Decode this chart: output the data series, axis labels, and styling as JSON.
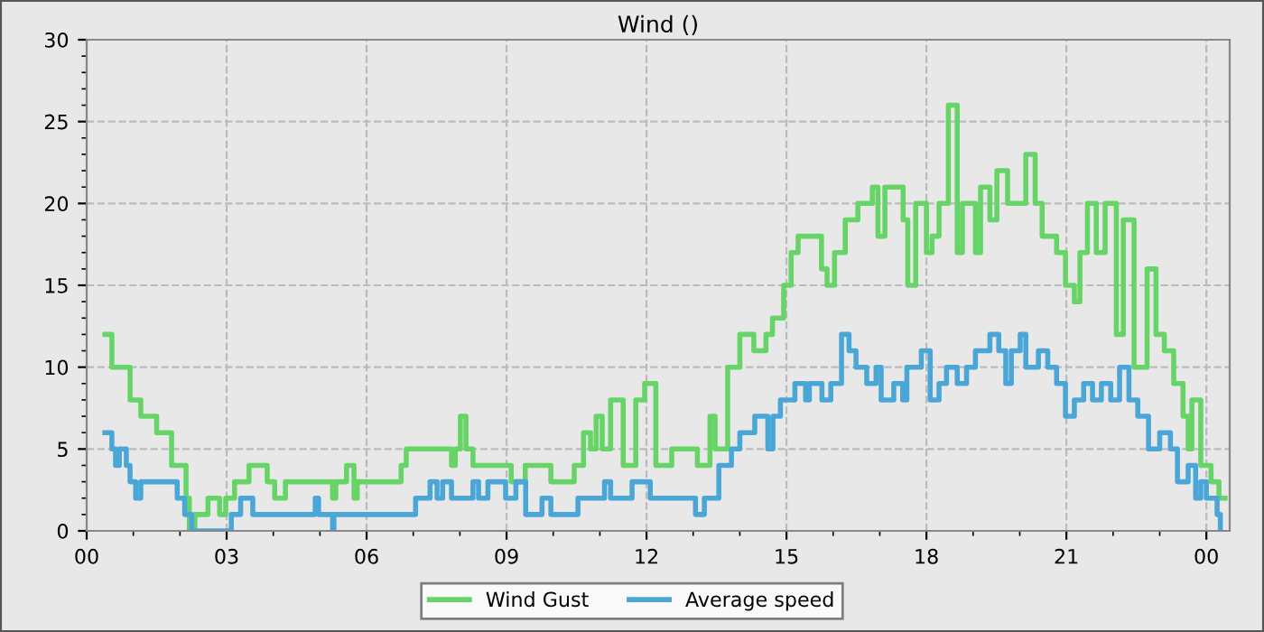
{
  "chart_data": {
    "type": "step",
    "title": "Wind ()",
    "xlim": [
      0,
      24.5
    ],
    "ylim": [
      0,
      30
    ],
    "xticks": [
      {
        "value": 0,
        "label": "00"
      },
      {
        "value": 3,
        "label": "03"
      },
      {
        "value": 6,
        "label": "06"
      },
      {
        "value": 9,
        "label": "09"
      },
      {
        "value": 12,
        "label": "12"
      },
      {
        "value": 15,
        "label": "15"
      },
      {
        "value": 18,
        "label": "18"
      },
      {
        "value": 21,
        "label": "21"
      },
      {
        "value": 24,
        "label": "00"
      }
    ],
    "yticks": [
      0,
      5,
      10,
      15,
      20,
      25,
      30
    ],
    "grid": true,
    "legend": "bottom",
    "line_style": "solid",
    "marker": "none",
    "series": [
      {
        "name": "Wind Gust",
        "color": "#66d466",
        "x": [
          0.39,
          0.54,
          0.93,
          1.16,
          1.5,
          1.82,
          2.13,
          2.2,
          2.32,
          2.6,
          2.85,
          2.98,
          3.17,
          3.48,
          3.87,
          4.03,
          4.26,
          5.27,
          5.34,
          5.57,
          5.73,
          5.8,
          6.74,
          6.85,
          7.82,
          7.9,
          8.01,
          8.13,
          8.28,
          8.98,
          9.1,
          9.4,
          9.76,
          9.95,
          10.45,
          10.65,
          10.8,
          10.92,
          11.05,
          11.23,
          11.5,
          11.77,
          11.96,
          12.2,
          12.54,
          13.09,
          13.36,
          13.47,
          13.74,
          14.0,
          14.3,
          14.56,
          14.7,
          14.94,
          15.1,
          15.25,
          15.75,
          15.87,
          16.03,
          16.26,
          16.53,
          16.84,
          16.96,
          17.11,
          17.5,
          17.6,
          17.77,
          18.0,
          18.12,
          18.27,
          18.47,
          18.66,
          18.77,
          19.05,
          19.16,
          19.36,
          19.51,
          19.74,
          20.13,
          20.33,
          20.48,
          20.79,
          20.98,
          21.17,
          21.29,
          21.45,
          21.64,
          21.83,
          22.07,
          22.22,
          22.45,
          22.73,
          22.92,
          23.1,
          23.3,
          23.5,
          23.61,
          23.69,
          23.88,
          24.1,
          24.27,
          24.4
        ],
        "values": [
          12,
          10,
          8,
          7,
          6,
          4,
          2,
          0,
          1,
          2,
          1,
          2,
          3,
          4,
          3,
          2,
          3,
          2,
          3,
          4,
          2,
          3,
          4,
          5,
          4,
          5,
          7,
          5,
          4,
          4,
          3,
          4,
          4,
          3,
          4,
          6,
          5,
          7,
          5,
          8,
          4,
          8,
          9,
          4,
          5,
          4,
          7,
          5,
          10,
          12,
          11,
          12,
          13,
          15,
          17,
          18,
          16,
          15,
          17,
          19,
          20,
          21,
          18,
          21,
          19,
          15,
          20,
          17,
          18,
          20,
          26,
          17,
          20,
          17,
          21,
          19,
          22,
          20,
          23,
          20,
          18,
          17,
          15,
          14,
          17,
          20,
          17,
          20,
          12,
          19,
          10,
          16,
          12,
          11,
          9,
          7,
          5,
          8,
          4,
          3,
          2,
          2
        ]
      },
      {
        "name": "Average speed",
        "color": "#4ba6d8",
        "x": [
          0.39,
          0.54,
          0.62,
          0.7,
          0.85,
          0.93,
          1.05,
          1.16,
          1.94,
          2.1,
          2.25,
          3.1,
          3.3,
          3.56,
          4.9,
          4.97,
          5.27,
          5.3,
          7.05,
          7.36,
          7.51,
          7.63,
          7.82,
          8.28,
          8.4,
          8.6,
          8.98,
          9.2,
          9.41,
          9.76,
          9.95,
          10.53,
          11.1,
          11.23,
          11.69,
          12.08,
          13.05,
          13.24,
          13.55,
          13.82,
          14.0,
          14.32,
          14.6,
          14.71,
          14.87,
          15.18,
          15.41,
          15.49,
          15.76,
          15.95,
          16.18,
          16.34,
          16.49,
          16.72,
          16.92,
          17.03,
          17.3,
          17.49,
          17.58,
          17.89,
          18.08,
          18.27,
          18.43,
          18.66,
          18.86,
          19.05,
          19.36,
          19.55,
          19.7,
          19.82,
          20.01,
          20.13,
          20.4,
          20.6,
          20.79,
          20.98,
          21.17,
          21.37,
          21.56,
          21.75,
          21.95,
          22.14,
          22.34,
          22.53,
          22.76,
          23.0,
          23.23,
          23.38,
          23.61,
          23.77,
          23.88,
          24.0,
          24.23,
          24.3
        ],
        "values": [
          6,
          5,
          4,
          5,
          4,
          3,
          2,
          3,
          2,
          1,
          0,
          1,
          2,
          1,
          2,
          1,
          0,
          1,
          2,
          3,
          2,
          3,
          2,
          3,
          2,
          3,
          2,
          3,
          1,
          2,
          1,
          2,
          3,
          2,
          3,
          2,
          1,
          2,
          4,
          5,
          6,
          7,
          5,
          7,
          8,
          9,
          8,
          9,
          8,
          9,
          12,
          11,
          10,
          9,
          10,
          8,
          9,
          8,
          10,
          11,
          8,
          9,
          10,
          9,
          10,
          11,
          12,
          11,
          9,
          11,
          12,
          10,
          11,
          10,
          9,
          7,
          8,
          9,
          8,
          9,
          8,
          10,
          8,
          7,
          5,
          6,
          5,
          3,
          4,
          2,
          3,
          2,
          1,
          0
        ]
      }
    ]
  }
}
